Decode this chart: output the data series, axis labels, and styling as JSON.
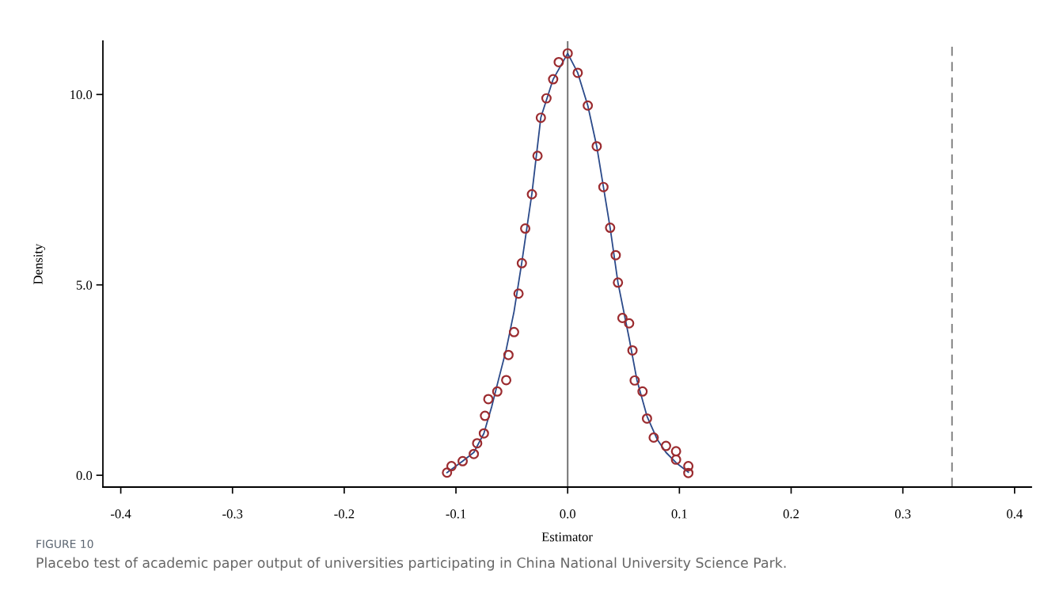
{
  "chart_data": {
    "type": "scatter",
    "xlabel": "Estimator",
    "ylabel": "Density",
    "annotations": [
      "FIGURE 10",
      "Placebo test of academic paper output of universities participating in China National University Science Park."
    ],
    "series": [
      {
        "type": "line",
        "color": "#2b4a8a",
        "marker": "none",
        "line_style": "solid",
        "x": [
          -0.108,
          -0.094,
          -0.084,
          -0.075,
          -0.068,
          -0.062,
          -0.055,
          -0.048,
          -0.041,
          -0.032,
          -0.024,
          -0.013,
          0.0,
          0.009,
          0.018,
          0.026,
          0.032,
          0.038,
          0.045,
          0.055,
          0.062,
          0.071,
          0.08,
          0.088,
          0.097,
          0.108
        ],
        "values": [
          0.07,
          0.37,
          0.6,
          1.1,
          1.8,
          2.5,
          3.3,
          4.3,
          5.6,
          7.4,
          9.4,
          10.4,
          11.08,
          10.57,
          9.71,
          8.64,
          7.57,
          6.5,
          5.06,
          3.6,
          2.5,
          1.55,
          0.95,
          0.6,
          0.33,
          0.08
        ]
      },
      {
        "color": "#9b2b2f",
        "marker": "circle",
        "x": [
          -0.108,
          -0.104,
          -0.094,
          -0.084,
          -0.081,
          -0.075,
          -0.074,
          -0.071,
          -0.063,
          -0.055,
          -0.053,
          -0.048,
          -0.044,
          -0.041,
          -0.038,
          -0.032,
          -0.027,
          -0.024,
          -0.019,
          -0.013,
          -0.008,
          0.0,
          0.009,
          0.018,
          0.026,
          0.032,
          0.038,
          0.043,
          0.045,
          0.049,
          0.055,
          0.058,
          0.06,
          0.067,
          0.071,
          0.077,
          0.088,
          0.097,
          0.097,
          0.108,
          0.108
        ],
        "values": [
          0.07,
          0.24,
          0.37,
          0.56,
          0.84,
          1.1,
          1.56,
          2.0,
          2.2,
          2.5,
          3.16,
          3.76,
          4.77,
          5.57,
          6.48,
          7.38,
          8.39,
          9.39,
          9.9,
          10.4,
          10.85,
          11.08,
          10.57,
          9.71,
          8.64,
          7.57,
          6.5,
          5.78,
          5.06,
          4.13,
          3.99,
          3.28,
          2.49,
          2.2,
          1.49,
          0.99,
          0.77,
          0.63,
          0.41,
          0.24,
          0.06
        ]
      }
    ],
    "xlim": [
      -0.416,
      0.415
    ],
    "ylim": [
      -0.31,
      11.4
    ],
    "xticks": [
      {
        "value": -0.4,
        "label": "-0.4"
      },
      {
        "value": -0.3,
        "label": "-0.3"
      },
      {
        "value": -0.2,
        "label": "-0.2"
      },
      {
        "value": -0.1,
        "label": "-0.1"
      },
      {
        "value": 0.0,
        "label": "0.0"
      },
      {
        "value": 0.1,
        "label": "0.1"
      },
      {
        "value": 0.2,
        "label": "0.2"
      },
      {
        "value": 0.3,
        "label": "0.3"
      },
      {
        "value": 0.4,
        "label": "0.4"
      }
    ],
    "yticks": [
      {
        "value": 0,
        "label": "0.0"
      },
      {
        "value": 5,
        "label": "5.0"
      },
      {
        "value": 10,
        "label": "10.0"
      }
    ],
    "ref_lines": [
      {
        "axis": "x",
        "value": 0,
        "color": "#707070",
        "line_style": "solid"
      },
      {
        "axis": "x",
        "value": 0.344,
        "color": "#808080",
        "line_style": "dashed"
      }
    ],
    "grid": false,
    "legend": false
  }
}
